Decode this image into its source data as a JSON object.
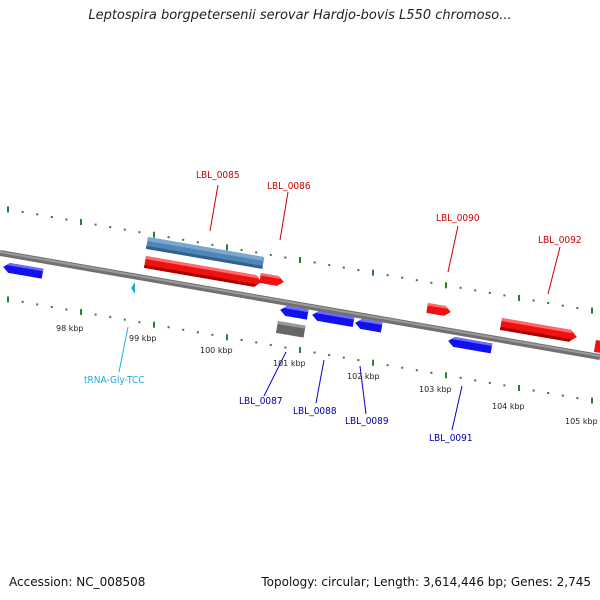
{
  "title": "Leptospira borgpetersenii serovar Hardjo-bovis L550 chromoso...",
  "footer": {
    "accession": "Accession: NC_008508",
    "summary": "Topology: circular; Length: 3,614,446 bp; Genes: 2,745"
  },
  "colors": {
    "forward_gene": "#ee1111",
    "reverse_gene": "#1111ee",
    "pseudo_gene": "#4f86b8",
    "rna": "#22aadd",
    "gray_feature": "#666666",
    "tick": "#2e7d32",
    "backbone": "#888888"
  },
  "scale": {
    "labels": [
      "98 kbp",
      "99 kbp",
      "100 kbp",
      "101 kbp",
      "102 kbp",
      "103 kbp",
      "104 kbp",
      "105 kbp"
    ]
  },
  "features": {
    "top_labels": [
      "LBL_0085",
      "LBL_0086",
      "LBL_0090",
      "LBL_0092"
    ],
    "bottom_labels": [
      "LBL_0087",
      "LBL_0088",
      "LBL_0089",
      "LBL_0091"
    ],
    "rna_label": "tRNA-Gly-TCC"
  }
}
